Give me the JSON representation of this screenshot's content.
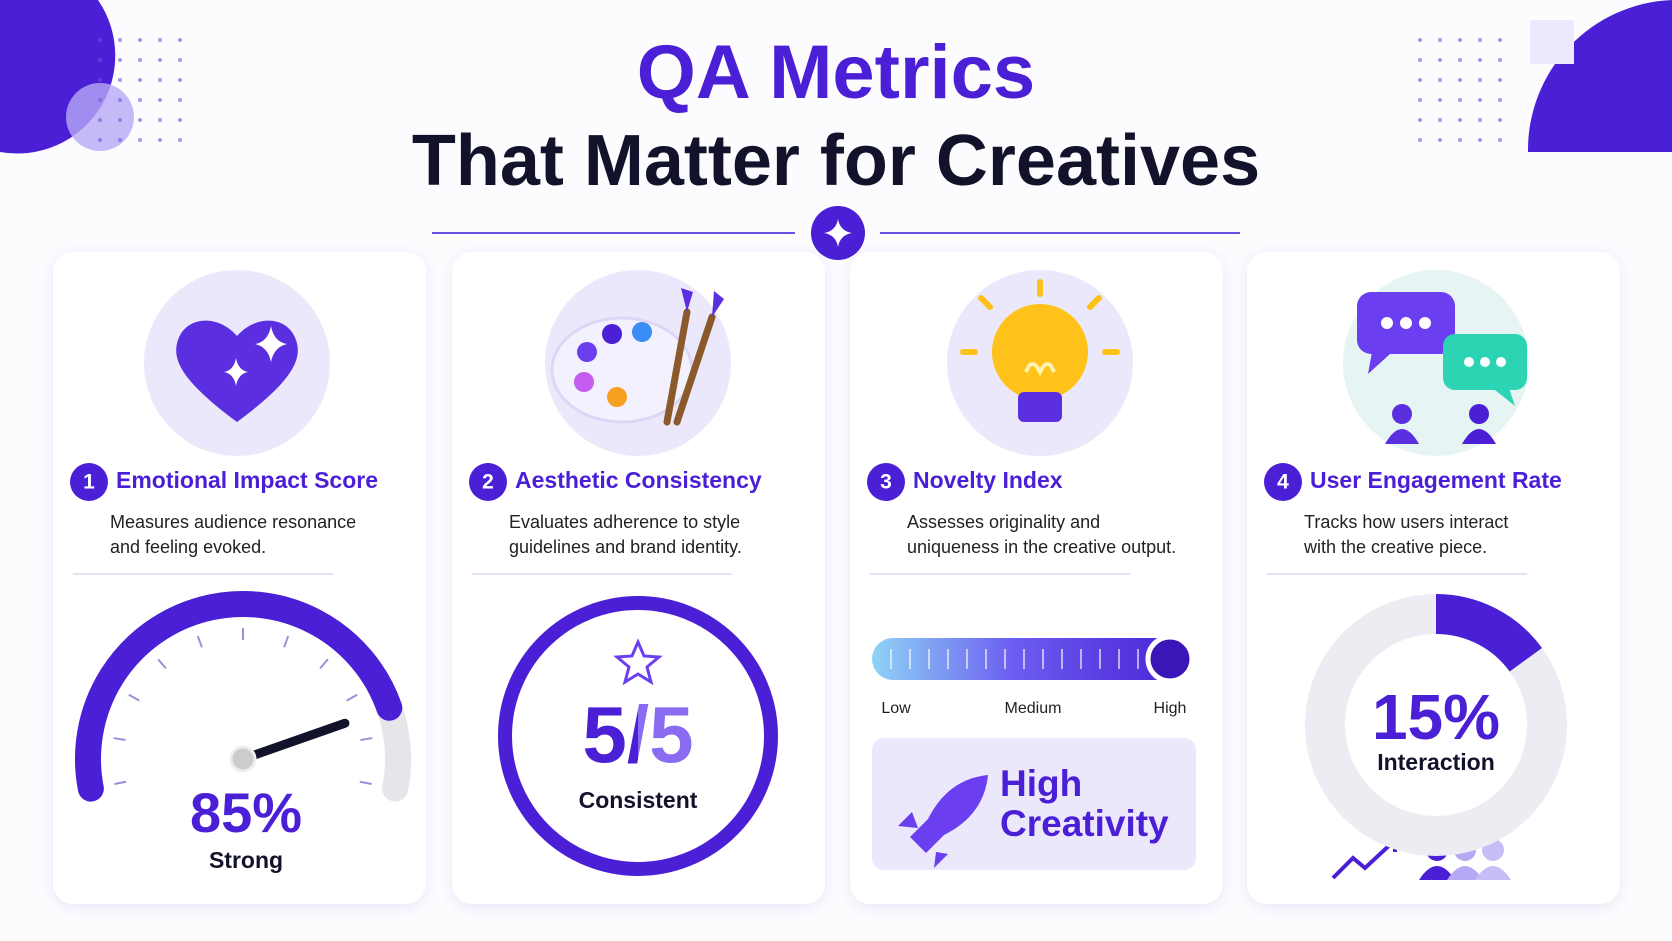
{
  "header": {
    "title_line1": "QA Metrics",
    "title_line2": "That Matter for Creatives"
  },
  "cards": [
    {
      "number": 1,
      "title": "Emotional Impact Score",
      "description": [
        "Measures audience resonance",
        "and feeling evoked."
      ],
      "metric": {
        "type": "gauge",
        "value": 85,
        "scale": [
          0,
          100
        ],
        "value_label": "85%",
        "caption": "Strong"
      }
    },
    {
      "number": 2,
      "title": "Aesthetic Consistency",
      "description": [
        "Evaluates adherence to style",
        "guidelines and brand identity."
      ],
      "metric": {
        "type": "ring",
        "value": 5,
        "max": 5,
        "value_label": "5/5",
        "caption": "Consistent"
      }
    },
    {
      "number": 3,
      "title": "Novelty Index",
      "description": [
        "Assesses originality and",
        "uniqueness in the creative output."
      ],
      "metric": {
        "type": "slider",
        "labels": [
          "Low",
          "Medium",
          "High"
        ],
        "level": "High",
        "badge": [
          "High",
          "Creativity"
        ]
      }
    },
    {
      "number": 4,
      "title": "User Engagement Rate",
      "description": [
        "Tracks how users interact",
        "with the creative piece."
      ],
      "metric": {
        "type": "donut",
        "value": 15,
        "scale": [
          0,
          100
        ],
        "value_label": "15%",
        "caption": "Interaction"
      }
    }
  ]
}
